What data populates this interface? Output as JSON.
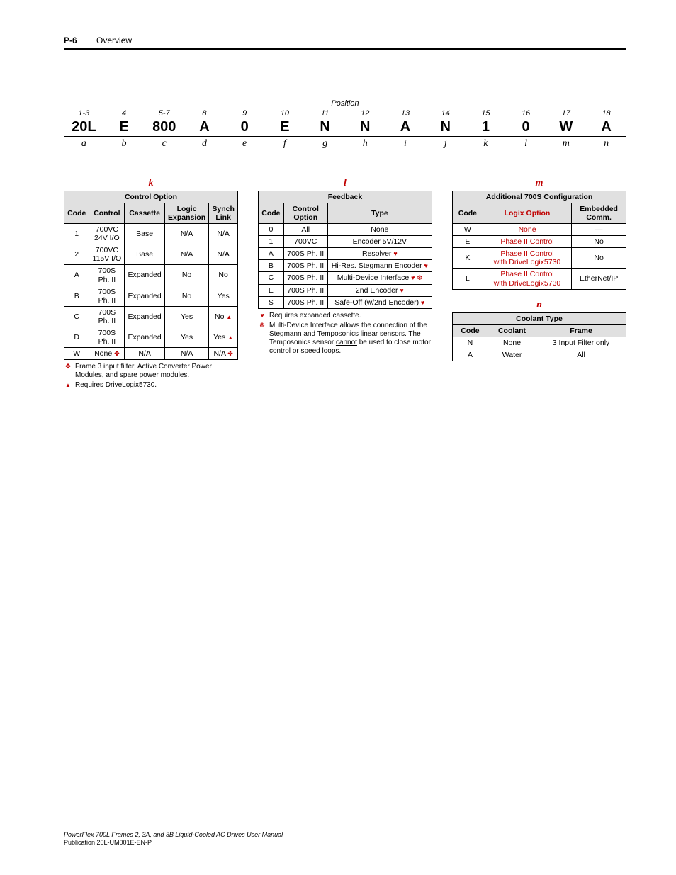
{
  "header": {
    "page_num": "P-6",
    "section": "Overview"
  },
  "position": {
    "label": "Position",
    "nums": [
      "1-3",
      "4",
      "5-7",
      "8",
      "9",
      "10",
      "11",
      "12",
      "13",
      "14",
      "15",
      "16",
      "17",
      "18"
    ],
    "codes": [
      "20L",
      "E",
      "800",
      "A",
      "0",
      "E",
      "N",
      "N",
      "A",
      "N",
      "1",
      "0",
      "W",
      "A"
    ],
    "letters": [
      "a",
      "b",
      "c",
      "d",
      "e",
      "f",
      "g",
      "h",
      "i",
      "j",
      "k",
      "l",
      "m",
      "n"
    ]
  },
  "table_k": {
    "letter": "k",
    "title": "Control Option",
    "headers": [
      "Code",
      "Control",
      "Cassette",
      "Logic Expansion",
      "Synch Link"
    ],
    "rows": [
      [
        "1",
        "700VC 24V I/O",
        "Base",
        "N/A",
        "N/A"
      ],
      [
        "2",
        "700VC 115V I/O",
        "Base",
        "N/A",
        "N/A"
      ],
      [
        "A",
        "700S Ph. II",
        "Expanded",
        "No",
        "No"
      ],
      [
        "B",
        "700S Ph. II",
        "Expanded",
        "No",
        "Yes"
      ],
      [
        "C",
        "700S Ph. II",
        "Expanded",
        "Yes",
        "No"
      ],
      [
        "D",
        "700S Ph. II",
        "Expanded",
        "Yes",
        "Yes"
      ],
      [
        "W",
        "None",
        "N/A",
        "N/A",
        "N/A"
      ]
    ],
    "row_markers": {
      "4": "triangle",
      "5": "triangle",
      "6": "cross"
    },
    "footnotes": [
      {
        "sym": "cross",
        "text": "Frame 3 input filter, Active Converter Power Modules, and spare power modules."
      },
      {
        "sym": "triangle",
        "text": "Requires DriveLogix5730."
      }
    ]
  },
  "table_l": {
    "letter": "l",
    "title": "Feedback",
    "headers": [
      "Code",
      "Control Option",
      "Type"
    ],
    "rows": [
      [
        "0",
        "All",
        "None",
        null
      ],
      [
        "1",
        "700VC",
        "Encoder 5V/12V",
        null
      ],
      [
        "A",
        "700S Ph. II",
        "Resolver",
        "heart"
      ],
      [
        "B",
        "700S Ph. II",
        "Hi-Res. Stegmann Encoder",
        "heart"
      ],
      [
        "C",
        "700S Ph. II",
        "Multi-Device Interface",
        "heart snow"
      ],
      [
        "E",
        "700S Ph. II",
        "2nd Encoder",
        "heart"
      ],
      [
        "S",
        "700S Ph. II",
        "Safe-Off (w/2nd Encoder)",
        "heart"
      ]
    ],
    "footnotes": [
      {
        "sym": "heart",
        "text": "Requires expanded cassette."
      },
      {
        "sym": "snow",
        "text": "Multi-Device Interface allows the connection of the Stegmann and Temposonics linear sensors. The Temposonics sensor <u>cannot</u> be used to close motor control or speed loops."
      }
    ]
  },
  "table_m": {
    "letter": "m",
    "title": "Additional 700S Configuration",
    "headers": [
      "Code",
      "Logix Option",
      "Embedded Comm."
    ],
    "rows": [
      [
        "W",
        "None",
        "—"
      ],
      [
        "E",
        "Phase II Control",
        "No"
      ],
      [
        "K",
        "Phase II Control with DriveLogix5730",
        "No"
      ],
      [
        "L",
        "Phase II Control with DriveLogix5730",
        "EtherNet/IP"
      ]
    ]
  },
  "table_n": {
    "letter": "n",
    "title": "Coolant Type",
    "headers": [
      "Code",
      "Coolant",
      "Frame"
    ],
    "rows": [
      [
        "N",
        "None",
        "3 Input Filter only"
      ],
      [
        "A",
        "Water",
        "All"
      ]
    ]
  },
  "footer": {
    "line1": "PowerFlex 700L Frames 2, 3A, and 3B Liquid-Cooled AC Drives User Manual",
    "line2": "Publication 20L-UM001E-EN-P"
  }
}
